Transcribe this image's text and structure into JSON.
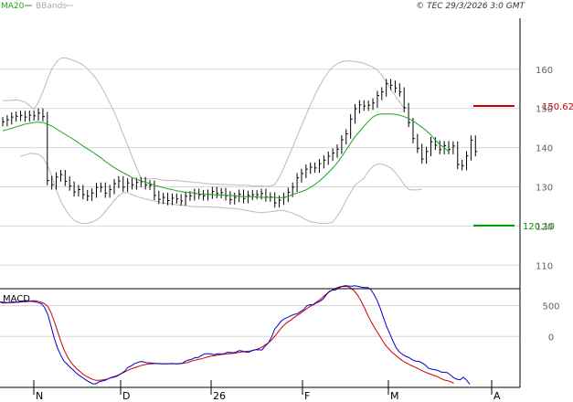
{
  "header": {
    "legend_ma": "MA20",
    "legend_bb": "BBands",
    "copyright": "© TEC 29/3/2026 3:0 GMT",
    "ma_color": "#1aa51a",
    "bb_color": "#bbbbbb"
  },
  "levels": {
    "resistance": "150.62",
    "support": "120.10",
    "resistance_color": "#cc0000",
    "support_color": "#009900"
  },
  "macd_panel": {
    "title": "MACD"
  },
  "chart_data": [
    {
      "type": "bar",
      "subtype": "ohlc-price",
      "grid": true,
      "ylim": [
        104,
        173
      ],
      "yticks": [
        110,
        120,
        130,
        140,
        150,
        160
      ],
      "xtick_labels": [
        "N",
        "D",
        "26",
        "F",
        "M",
        "A"
      ],
      "series": [
        {
          "name": "MA20",
          "values": [
            144.3,
            144.6,
            144.9,
            145.3,
            145.6,
            146.0,
            146.2,
            146.4,
            146.5,
            146.4,
            146.0,
            145.5,
            144.8,
            144.1,
            143.4,
            142.7,
            142.0,
            141.2,
            140.4,
            139.7,
            139.0,
            138.2,
            137.4,
            136.5,
            135.7,
            134.9,
            134.2,
            133.6,
            133.0,
            132.4,
            131.9,
            131.5,
            131.2,
            130.8,
            130.4,
            130.1,
            129.8,
            129.5,
            129.3,
            129.0,
            128.8,
            128.6,
            128.5,
            128.4,
            128.2,
            128.1,
            128.1,
            128.0,
            127.9,
            127.9,
            127.8,
            127.8,
            127.7,
            127.6,
            127.5,
            127.5,
            127.5,
            127.4,
            127.3,
            127.3,
            127.3,
            127.3,
            127.2,
            127.3,
            127.6,
            128.0,
            128.4,
            128.8,
            129.2,
            129.9,
            130.6,
            131.5,
            132.5,
            133.6,
            134.8,
            136.1,
            137.7,
            139.4,
            141.1,
            142.8,
            144.1,
            145.5,
            146.7,
            147.8,
            148.4,
            148.6,
            148.6,
            148.6,
            148.5,
            148.3,
            147.9,
            147.5,
            146.8,
            146.0,
            145.2,
            144.3,
            143.2,
            141.9,
            140.8,
            140.0,
            139.0
          ],
          "x_start": 0
        },
        {
          "name": "BB upper",
          "values": [
            152.0,
            152.0,
            152.1,
            152.2,
            152.0,
            151.6,
            150.7,
            149.8,
            151.5,
            154.2,
            157.3,
            160.1,
            161.8,
            162.8,
            162.9,
            162.6,
            162.2,
            161.7,
            161.1,
            160.1,
            158.9,
            157.5,
            155.7,
            153.7,
            151.4,
            149.1,
            146.4,
            143.4,
            140.7,
            137.7,
            134.9,
            132.2,
            132.0,
            132.0,
            132.1,
            131.9,
            131.7,
            131.6,
            131.6,
            131.6,
            131.5,
            131.3,
            131.3,
            131.1,
            131.1,
            130.9,
            130.8,
            130.7,
            130.7,
            130.6,
            130.6,
            130.5,
            130.5,
            130.4,
            130.4,
            130.4,
            130.2,
            130.2,
            130.2,
            130.1,
            130.2,
            130.6,
            132.4,
            134.8,
            137.4,
            140.1,
            142.9,
            145.6,
            148.3,
            150.9,
            153.4,
            155.6,
            157.7,
            159.3,
            160.6,
            161.4,
            161.9,
            162.1,
            162.1,
            161.9,
            161.8,
            161.5,
            161.0,
            160.5,
            159.8,
            158.4,
            156.8,
            155.0,
            153.2,
            151.7,
            150.0
          ],
          "x_start": 0
        },
        {
          "name": "BB lower",
          "values": [
            137.8,
            138.1,
            138.5,
            138.5,
            138.3,
            137.5,
            135.5,
            132.7,
            129.2,
            126.4,
            124.3,
            122.6,
            121.5,
            120.9,
            120.6,
            120.7,
            121.0,
            121.5,
            122.4,
            123.7,
            125.1,
            126.5,
            127.8,
            128.5,
            128.5,
            128.0,
            127.5,
            127.2,
            126.9,
            126.6,
            126.4,
            126.1,
            125.8,
            125.7,
            125.6,
            125.4,
            125.3,
            125.2,
            125.0,
            124.9,
            124.9,
            124.9,
            124.9,
            124.8,
            124.8,
            124.7,
            124.6,
            124.5,
            124.5,
            124.3,
            124.1,
            123.9,
            123.7,
            123.5,
            123.4,
            123.5,
            123.6,
            123.8,
            124.0,
            124.0,
            123.6,
            123.3,
            122.8,
            122.3,
            121.6,
            121.1,
            120.9,
            120.7,
            120.7,
            120.7,
            121.0,
            122.5,
            124.3,
            126.6,
            128.6,
            130.4,
            131.4,
            132.2,
            134.0,
            135.2,
            135.8,
            135.8,
            135.4,
            134.8,
            133.7,
            132.2,
            130.6,
            129.3,
            129.2,
            129.2,
            129.4
          ],
          "x_start": 4
        },
        {
          "name": "OHLC close",
          "values": [
            146.6,
            147.1,
            147.8,
            148.0,
            148.2,
            147.8,
            148.3,
            148.1,
            148.8,
            147.9,
            131.6,
            130.5,
            132.5,
            133.1,
            131.4,
            130.2,
            128.7,
            129.3,
            128.0,
            127.6,
            128.4,
            129.8,
            129.9,
            128.4,
            129.3,
            130.8,
            131.5,
            129.9,
            131.0,
            130.5,
            131.1,
            131.3,
            130.5,
            130.4,
            127.8,
            126.8,
            127.3,
            126.5,
            127.1,
            126.9,
            126.4,
            127.6,
            127.7,
            128.3,
            128.0,
            127.7,
            128.1,
            128.8,
            128.3,
            128.5,
            127.7,
            126.7,
            127.3,
            128.1,
            127.0,
            127.8,
            128.0,
            128.0,
            128.3,
            127.4,
            127.4,
            125.9,
            126.6,
            127.3,
            128.6,
            129.9,
            132.3,
            133.4,
            134.5,
            135.0,
            134.8,
            135.9,
            136.8,
            137.8,
            138.6,
            139.6,
            142.0,
            143.5,
            147.3,
            149.9,
            150.9,
            150.6,
            150.8,
            151.4,
            153.3,
            154.2,
            156.3,
            155.9,
            155.2,
            154.2,
            150.2,
            146.4,
            142.3,
            139.8,
            137.1,
            139.0,
            141.5,
            140.6,
            139.5,
            140.5,
            139.5,
            140.4,
            135.7,
            135.4,
            137.9,
            141.9,
            139.0
          ]
        }
      ]
    },
    {
      "type": "line",
      "subtype": "macd",
      "title": "MACD",
      "grid": true,
      "ylim": [
        -823,
        773
      ],
      "yticks": [
        0,
        500
      ],
      "series": [
        {
          "name": "MACD",
          "color": "#0000cc",
          "values": [
            557,
            541,
            545,
            551,
            559,
            557,
            555,
            569,
            583,
            570,
            567,
            560,
            547,
            529,
            462,
            352,
            167,
            -30,
            -184,
            -301,
            -398,
            -446,
            -501,
            -544,
            -599,
            -636,
            -670,
            -708,
            -738,
            -765,
            -766,
            -733,
            -720,
            -706,
            -680,
            -665,
            -656,
            -630,
            -597,
            -561,
            -500,
            -476,
            -441,
            -421,
            -404,
            -411,
            -424,
            -425,
            -431,
            -439,
            -440,
            -441,
            -440,
            -440,
            -436,
            -441,
            -442,
            -434,
            -399,
            -380,
            -369,
            -342,
            -339,
            -309,
            -279,
            -280,
            -281,
            -297,
            -278,
            -281,
            -282,
            -256,
            -258,
            -264,
            -248,
            -227,
            -236,
            -253,
            -252,
            -225,
            -214,
            -216,
            -219,
            -154,
            -103,
            -7,
            121,
            184,
            252,
            287,
            309,
            336,
            358,
            367,
            402,
            435,
            495,
            514,
            512,
            543,
            567,
            602,
            666,
            727,
            749,
            754,
            785,
            809,
            823,
            818,
            813,
            822,
            812,
            799,
            791,
            794,
            763,
            685,
            584,
            457,
            305,
            160,
            45,
            -77,
            -185,
            -249,
            -293,
            -320,
            -342,
            -375,
            -398,
            -400,
            -425,
            -456,
            -509,
            -527,
            -536,
            -548,
            -573,
            -579,
            -585,
            -623,
            -666,
            -691,
            -701,
            -659,
            -706,
            -773
          ]
        },
        {
          "name": "Signal",
          "color": "#cc0000",
          "values": [
            558,
            557,
            551,
            545,
            548,
            553,
            559,
            562,
            560,
            569,
            576,
            579,
            569,
            551,
            527,
            486,
            383,
            241,
            89,
            -70,
            -211,
            -317,
            -403,
            -469,
            -522,
            -565,
            -609,
            -643,
            -669,
            -695,
            -709,
            -708,
            -704,
            -695,
            -679,
            -658,
            -642,
            -623,
            -599,
            -575,
            -547,
            -524,
            -507,
            -490,
            -472,
            -460,
            -447,
            -443,
            -440,
            -436,
            -438,
            -440,
            -442,
            -440,
            -440,
            -440,
            -437,
            -433,
            -428,
            -415,
            -398,
            -384,
            -371,
            -361,
            -346,
            -330,
            -318,
            -310,
            -301,
            -292,
            -288,
            -282,
            -276,
            -272,
            -264,
            -255,
            -246,
            -241,
            -235,
            -227,
            -213,
            -196,
            -172,
            -138,
            -103,
            -55,
            3,
            69,
            136,
            190,
            231,
            266,
            305,
            341,
            376,
            413,
            451,
            483,
            516,
            554,
            593,
            637,
            682,
            719,
            753,
            779,
            800,
            810,
            809,
            805,
            777,
            730,
            664,
            574,
            470,
            356,
            254,
            161,
            78,
            -5,
            -91,
            -162,
            -219,
            -270,
            -310,
            -355,
            -394,
            -424,
            -451,
            -476,
            -500,
            -525,
            -553,
            -575,
            -596,
            -615,
            -632,
            -652,
            -678,
            -703,
            -714,
            -730,
            -757
          ]
        }
      ]
    }
  ]
}
